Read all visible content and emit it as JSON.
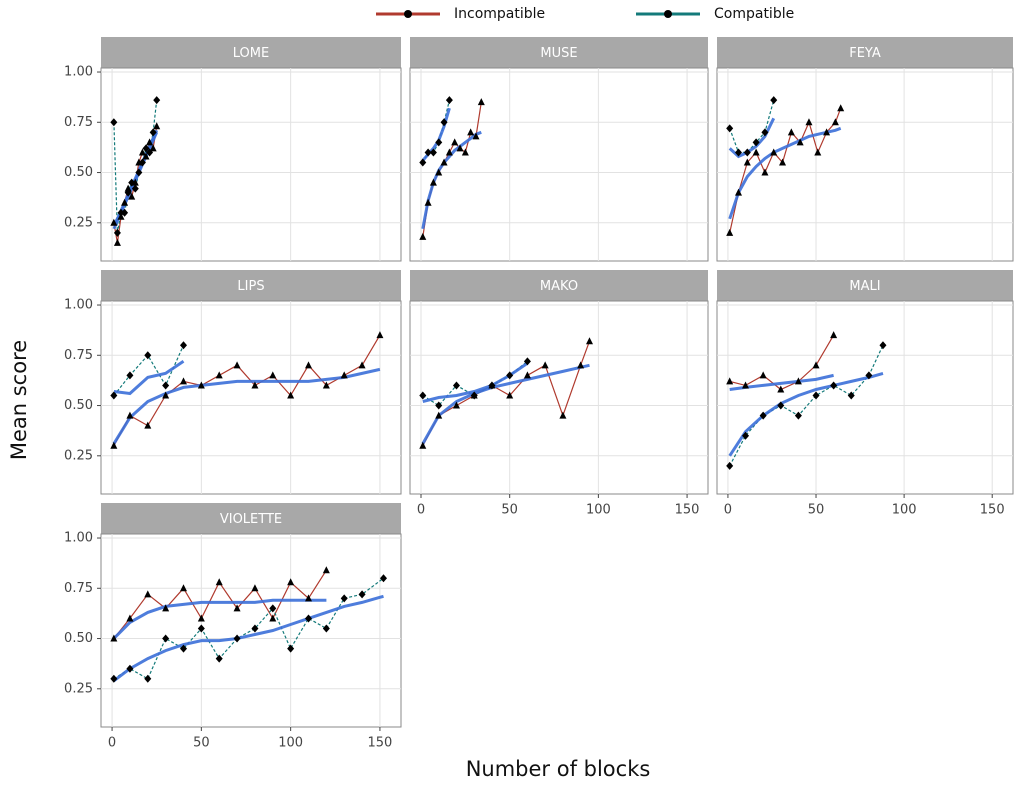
{
  "chart_data": {
    "type": "line",
    "x_label": "Number of blocks",
    "y_label": "Mean score",
    "xlim": [
      -6.2,
      161.8
    ],
    "ylim": [
      0.06,
      1.02
    ],
    "xticks": [
      0,
      50,
      100,
      150
    ],
    "yticks": [
      {
        "value": 0.25,
        "label": "0.25"
      },
      {
        "value": 0.5,
        "label": "0.50"
      },
      {
        "value": 0.75,
        "label": "0.75"
      },
      {
        "value": 1.0,
        "label": "1.00"
      }
    ],
    "grid": true,
    "series": [
      {
        "name": "Incompatible",
        "color": "#b03a2e"
      },
      {
        "name": "Compatible",
        "color": "#137a7a"
      }
    ],
    "trend_color": "#3b6fd8",
    "panels": [
      {
        "title": "LOME",
        "x": [
          1,
          3,
          5,
          7,
          9,
          11,
          13,
          15,
          17,
          19,
          21,
          23,
          25
        ],
        "values": [
          [
            0.25,
            0.15,
            0.28,
            0.35,
            0.42,
            0.38,
            0.45,
            0.55,
            0.6,
            0.58,
            0.65,
            0.62,
            0.73
          ],
          [
            0.75,
            0.2,
            0.3,
            0.3,
            0.4,
            0.45,
            0.42,
            0.5,
            0.55,
            0.62,
            0.6,
            0.7,
            0.86
          ]
        ],
        "trend": [
          [
            0.22,
            0.26,
            0.3,
            0.34,
            0.38,
            0.42,
            0.46,
            0.5,
            0.54,
            0.58,
            0.62,
            0.66,
            0.7
          ],
          [
            0.24,
            0.27,
            0.31,
            0.35,
            0.39,
            0.43,
            0.47,
            0.51,
            0.55,
            0.59,
            0.63,
            0.67,
            0.71
          ]
        ]
      },
      {
        "title": "MUSE",
        "x": [
          1,
          4,
          7,
          10,
          13,
          16,
          19,
          22,
          25,
          28,
          31,
          34
        ],
        "values": [
          [
            0.18,
            0.35,
            0.45,
            0.5,
            0.55,
            0.6,
            0.65,
            0.62,
            0.6,
            0.7,
            0.68,
            0.85
          ],
          [
            0.55,
            0.6,
            0.6,
            0.65,
            0.75,
            0.86,
            null,
            null,
            null,
            null,
            null,
            null
          ]
        ],
        "trend": [
          [
            0.22,
            0.36,
            0.45,
            0.51,
            0.55,
            0.58,
            0.61,
            0.63,
            0.65,
            0.67,
            0.69,
            0.7
          ],
          [
            0.56,
            0.59,
            0.62,
            0.66,
            0.73,
            0.82,
            null,
            null,
            null,
            null,
            null,
            null
          ]
        ]
      },
      {
        "title": "FEYA",
        "x": [
          1,
          6,
          11,
          16,
          21,
          26,
          31,
          36,
          41,
          46,
          51,
          56,
          61,
          64
        ],
        "values": [
          [
            0.2,
            0.4,
            0.55,
            0.6,
            0.5,
            0.6,
            0.55,
            0.7,
            0.65,
            0.75,
            0.6,
            0.7,
            0.75,
            0.82
          ],
          [
            0.72,
            0.6,
            0.6,
            0.65,
            0.7,
            0.86,
            null,
            null,
            null,
            null,
            null,
            null,
            null,
            null
          ]
        ],
        "trend": [
          [
            0.27,
            0.4,
            0.48,
            0.53,
            0.57,
            0.6,
            0.62,
            0.64,
            0.66,
            0.68,
            0.69,
            0.7,
            0.71,
            0.72
          ],
          [
            0.62,
            0.58,
            0.6,
            0.63,
            0.68,
            0.77,
            null,
            null,
            null,
            null,
            null,
            null,
            null,
            null
          ]
        ]
      },
      {
        "title": "LIPS",
        "x": [
          1,
          10,
          20,
          30,
          40,
          50,
          60,
          70,
          80,
          90,
          100,
          110,
          120,
          130,
          140,
          150
        ],
        "values": [
          [
            0.3,
            0.45,
            0.4,
            0.55,
            0.62,
            0.6,
            0.65,
            0.7,
            0.6,
            0.65,
            0.55,
            0.7,
            0.6,
            0.65,
            0.7,
            0.85
          ],
          [
            0.55,
            0.65,
            0.75,
            0.6,
            0.8,
            null,
            null,
            null,
            null,
            null,
            null,
            null,
            null,
            null,
            null,
            null
          ]
        ],
        "trend": [
          [
            0.31,
            0.44,
            0.52,
            0.56,
            0.59,
            0.6,
            0.61,
            0.62,
            0.62,
            0.62,
            0.62,
            0.62,
            0.63,
            0.64,
            0.66,
            0.68
          ],
          [
            0.57,
            0.56,
            0.64,
            0.66,
            0.72,
            null,
            null,
            null,
            null,
            null,
            null,
            null,
            null,
            null,
            null,
            null
          ]
        ]
      },
      {
        "title": "MAKO",
        "x": [
          1,
          10,
          20,
          30,
          40,
          50,
          60,
          70,
          80,
          90,
          95
        ],
        "values": [
          [
            0.3,
            0.45,
            0.5,
            0.55,
            0.6,
            0.55,
            0.65,
            0.7,
            0.45,
            0.7,
            0.82
          ],
          [
            0.55,
            0.5,
            0.6,
            0.55,
            0.6,
            0.65,
            0.72,
            null,
            null,
            null,
            null
          ]
        ],
        "trend": [
          [
            0.31,
            0.45,
            0.52,
            0.56,
            0.59,
            0.61,
            0.63,
            0.65,
            0.67,
            0.69,
            0.7
          ],
          [
            0.52,
            0.54,
            0.55,
            0.57,
            0.6,
            0.65,
            0.71,
            null,
            null,
            null,
            null
          ]
        ]
      },
      {
        "title": "MALI",
        "x": [
          1,
          10,
          20,
          30,
          40,
          50,
          60,
          70,
          80,
          88
        ],
        "values": [
          [
            0.62,
            0.6,
            0.65,
            0.58,
            0.62,
            0.7,
            0.85,
            null,
            null,
            null
          ],
          [
            0.2,
            0.35,
            0.45,
            0.5,
            0.45,
            0.55,
            0.6,
            0.55,
            0.65,
            0.8
          ]
        ],
        "trend": [
          [
            0.58,
            0.59,
            0.6,
            0.61,
            0.62,
            0.63,
            0.65,
            null,
            null,
            null
          ],
          [
            0.25,
            0.37,
            0.45,
            0.51,
            0.55,
            0.58,
            0.6,
            0.62,
            0.64,
            0.66
          ]
        ]
      },
      {
        "title": "VIOLETTE",
        "x": [
          1,
          10,
          20,
          30,
          40,
          50,
          60,
          70,
          80,
          90,
          100,
          110,
          120,
          130,
          140,
          152
        ],
        "values": [
          [
            0.5,
            0.6,
            0.72,
            0.65,
            0.75,
            0.6,
            0.78,
            0.65,
            0.75,
            0.6,
            0.78,
            0.7,
            0.84,
            null,
            null,
            null
          ],
          [
            0.3,
            0.35,
            0.3,
            0.5,
            0.45,
            0.55,
            0.4,
            0.5,
            0.55,
            0.65,
            0.45,
            0.6,
            0.55,
            0.7,
            0.72,
            0.8
          ]
        ],
        "trend": [
          [
            0.5,
            0.58,
            0.63,
            0.66,
            0.67,
            0.68,
            0.68,
            0.68,
            0.68,
            0.69,
            0.69,
            0.69,
            0.69,
            null,
            null,
            null
          ],
          [
            0.29,
            0.35,
            0.4,
            0.44,
            0.47,
            0.49,
            0.49,
            0.5,
            0.52,
            0.54,
            0.57,
            0.6,
            0.63,
            0.66,
            0.68,
            0.71
          ]
        ]
      }
    ]
  }
}
